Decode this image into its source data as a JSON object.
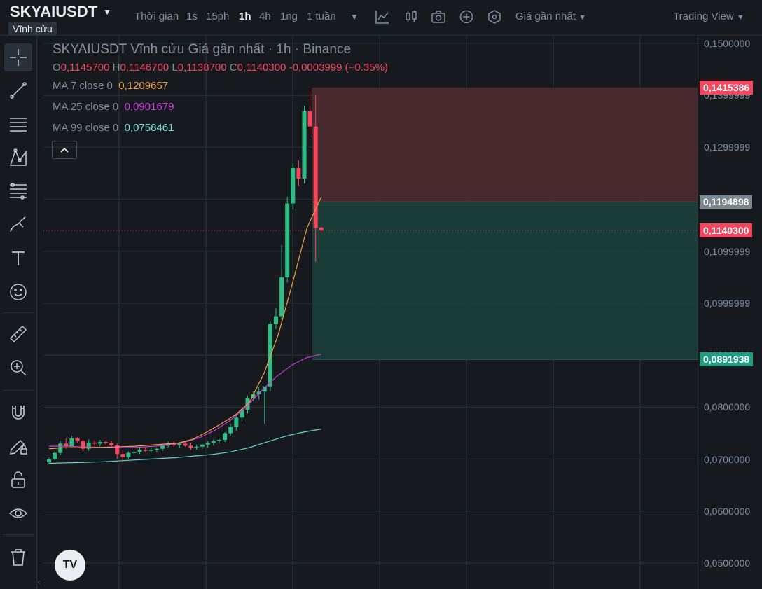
{
  "header": {
    "symbol": "SKYAIUSDT",
    "subtag": "Vĩnh cửu",
    "timeframes": [
      "Thời gian",
      "1s",
      "15ph",
      "1h",
      "4h",
      "1ng",
      "1 tuần"
    ],
    "active_timeframe": "1h",
    "price_type": "Giá gần nhất",
    "view_mode": "Trading View"
  },
  "legend": {
    "title": "SKYAIUSDT Vĩnh cửu Giá gần nhất · 1h · Binance",
    "o_label": "O",
    "o": "0,1145700",
    "h_label": "H",
    "h": "0,1146700",
    "l_label": "L",
    "l": "0,1138700",
    "c_label": "C",
    "c": "0,1140300",
    "change": "-0,0003999 (−0.35%)",
    "ma7_label": "MA 7 close 0",
    "ma7": "0,1209657",
    "ma25_label": "MA 25 close 0",
    "ma25": "0,0901679",
    "ma99_label": "MA 99 close 0",
    "ma99": "0,0758461"
  },
  "axis": {
    "labels": [
      "0,1500000",
      "0,1399999",
      "0,1299999",
      "0,1199999",
      "0,1099999",
      "0,0999999",
      "0,0899999",
      "0,0800000",
      "0,0700000",
      "0,0600000",
      "0,0500000"
    ],
    "stop_loss": "0,1415386",
    "entry": "0,1194898",
    "last": "0,1140300",
    "take_profit": "0,0891938"
  },
  "colors": {
    "up": "#2ebd85",
    "down": "#f6465d",
    "ma7": "#f0a04b",
    "ma25": "#c93cd6",
    "ma99": "#6ad5c8",
    "loss_zone": "#4a2a2f",
    "profit_zone": "#1b3f3a"
  },
  "chart_data": {
    "type": "candlestick",
    "ylim": [
      0.05,
      0.15
    ],
    "position": {
      "stop_loss": 0.1415386,
      "entry": 0.1194898,
      "take_profit": 0.0891938,
      "last": 0.11403
    },
    "candles": [
      [
        0.0694,
        0.0703,
        0.069,
        0.07
      ],
      [
        0.07,
        0.0715,
        0.0698,
        0.0712
      ],
      [
        0.0712,
        0.0735,
        0.0708,
        0.073
      ],
      [
        0.073,
        0.074,
        0.072,
        0.0725
      ],
      [
        0.0725,
        0.0745,
        0.0722,
        0.074
      ],
      [
        0.074,
        0.0742,
        0.0732,
        0.0735
      ],
      [
        0.0735,
        0.0738,
        0.0715,
        0.072
      ],
      [
        0.072,
        0.0738,
        0.0716,
        0.0732
      ],
      [
        0.0732,
        0.0736,
        0.0726,
        0.073
      ],
      [
        0.073,
        0.0737,
        0.0725,
        0.0733
      ],
      [
        0.0733,
        0.0736,
        0.0728,
        0.0731
      ],
      [
        0.0731,
        0.0735,
        0.0725,
        0.0727
      ],
      [
        0.0727,
        0.073,
        0.07,
        0.071
      ],
      [
        0.071,
        0.0718,
        0.0696,
        0.0704
      ],
      [
        0.0704,
        0.0715,
        0.07,
        0.0712
      ],
      [
        0.0712,
        0.0718,
        0.0706,
        0.0714
      ],
      [
        0.0714,
        0.0722,
        0.071,
        0.0718
      ],
      [
        0.0718,
        0.0722,
        0.0714,
        0.0716
      ],
      [
        0.0716,
        0.0722,
        0.0712,
        0.0718
      ],
      [
        0.0718,
        0.0722,
        0.0714,
        0.072
      ],
      [
        0.072,
        0.073,
        0.0716,
        0.0726
      ],
      [
        0.0726,
        0.0734,
        0.0722,
        0.073
      ],
      [
        0.073,
        0.0734,
        0.0724,
        0.0727
      ],
      [
        0.0727,
        0.0732,
        0.0722,
        0.073
      ],
      [
        0.073,
        0.0735,
        0.0724,
        0.0726
      ],
      [
        0.0726,
        0.0732,
        0.0718,
        0.0722
      ],
      [
        0.0722,
        0.0728,
        0.0718,
        0.0724
      ],
      [
        0.0724,
        0.073,
        0.072,
        0.0728
      ],
      [
        0.0728,
        0.0735,
        0.0722,
        0.0732
      ],
      [
        0.0732,
        0.0738,
        0.0726,
        0.0735
      ],
      [
        0.0735,
        0.074,
        0.073,
        0.0737
      ],
      [
        0.0737,
        0.0752,
        0.0733,
        0.075
      ],
      [
        0.075,
        0.0768,
        0.0745,
        0.0762
      ],
      [
        0.0762,
        0.0785,
        0.0755,
        0.078
      ],
      [
        0.078,
        0.08,
        0.0772,
        0.0795
      ],
      [
        0.0795,
        0.0822,
        0.0788,
        0.0818
      ],
      [
        0.0818,
        0.083,
        0.0812,
        0.0825
      ],
      [
        0.0825,
        0.084,
        0.0815,
        0.083
      ],
      [
        0.083,
        0.0835,
        0.0768,
        0.084
      ],
      [
        0.084,
        0.0965,
        0.083,
        0.096
      ],
      [
        0.096,
        0.099,
        0.095,
        0.0975
      ],
      [
        0.0975,
        0.1112,
        0.0968,
        0.105
      ],
      [
        0.105,
        0.1205,
        0.104,
        0.1192
      ],
      [
        0.1192,
        0.127,
        0.118,
        0.126
      ],
      [
        0.126,
        0.1275,
        0.1225,
        0.124
      ],
      [
        0.124,
        0.138,
        0.123,
        0.137
      ],
      [
        0.137,
        0.141,
        0.132,
        0.134
      ],
      [
        0.134,
        0.14,
        0.108,
        0.1145
      ],
      [
        0.11457,
        0.11467,
        0.11387,
        0.11403
      ]
    ],
    "ma7": [
      0.072,
      0.0722,
      0.0722,
      0.0722,
      0.0723,
      0.0724,
      0.0725,
      0.0727,
      0.0729,
      0.0731,
      0.0738,
      0.0752,
      0.0768,
      0.0785,
      0.081,
      0.0865,
      0.094,
      0.104,
      0.1145,
      0.1205
    ],
    "ma25": [
      0.0725,
      0.0725,
      0.0724,
      0.0723,
      0.0722,
      0.0722,
      0.0723,
      0.0725,
      0.0728,
      0.0733,
      0.0742,
      0.0756,
      0.0775,
      0.08,
      0.083,
      0.0858,
      0.088,
      0.0895,
      0.0902
    ],
    "ma99": [
      0.0692,
      0.0693,
      0.0694,
      0.0695,
      0.0697,
      0.0699,
      0.0701,
      0.0703,
      0.0706,
      0.0709,
      0.0714,
      0.0722,
      0.0733,
      0.0744,
      0.0752,
      0.0758
    ]
  }
}
